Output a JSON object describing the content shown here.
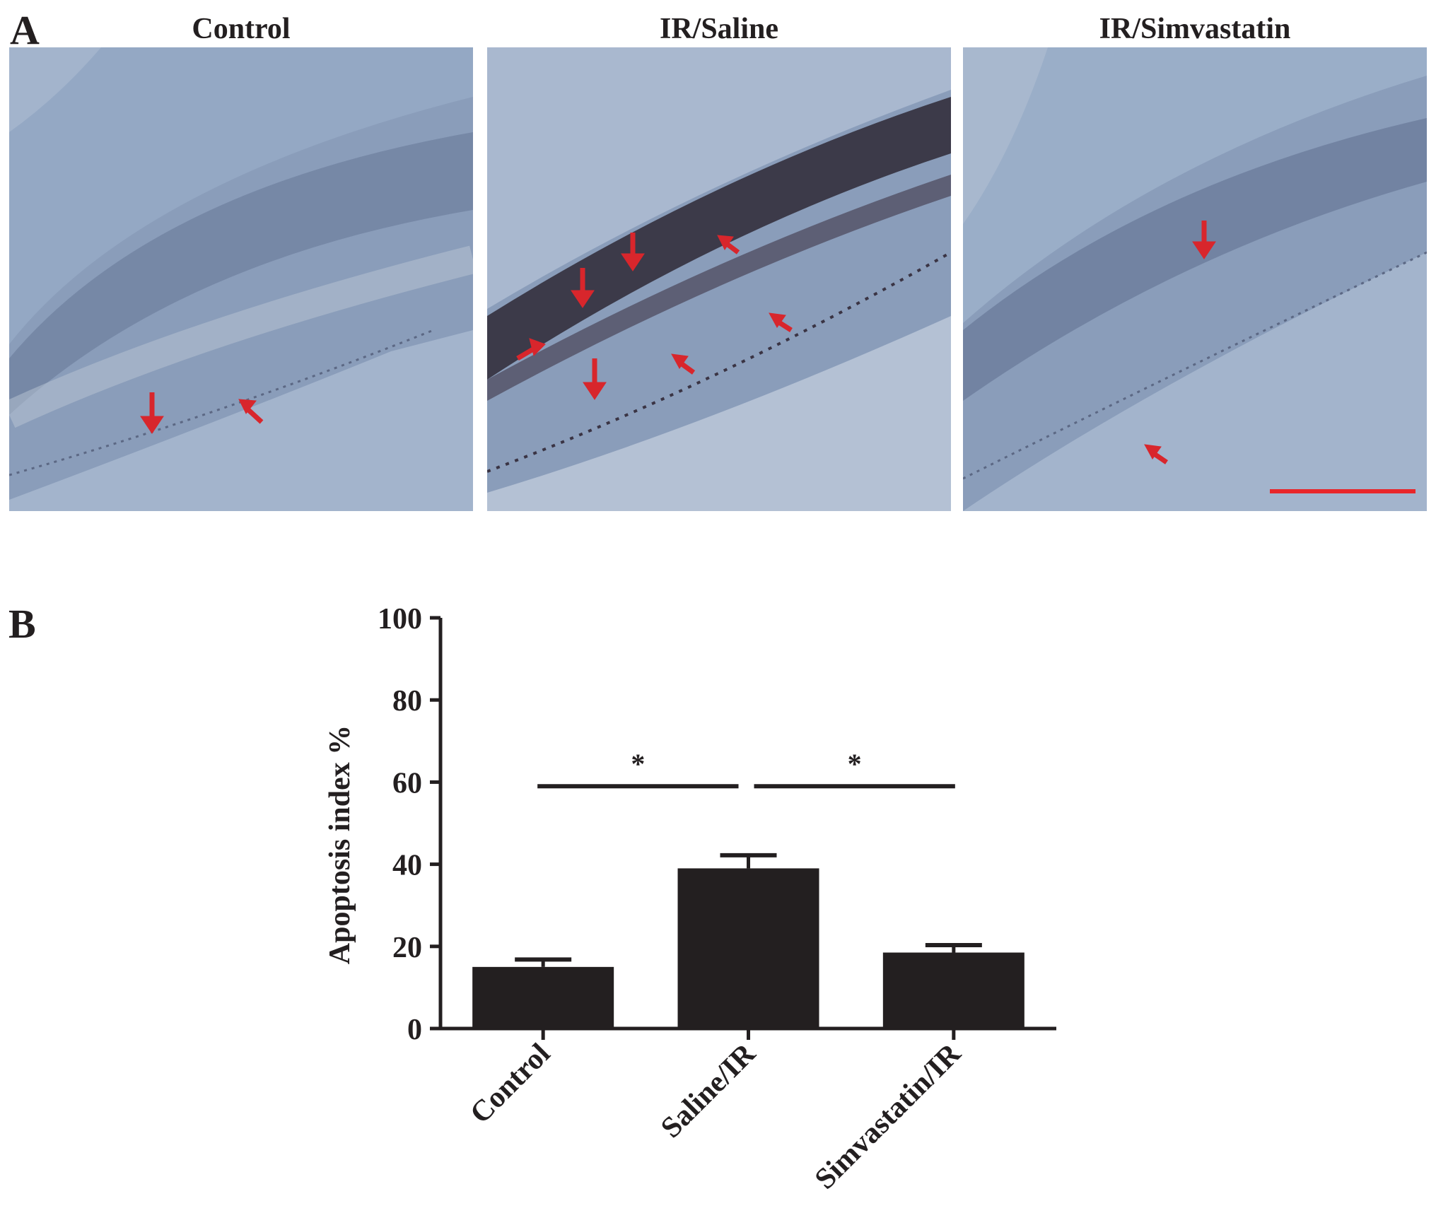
{
  "panel_a": {
    "letter": "A",
    "panels": [
      {
        "title": "Control"
      },
      {
        "title": "IR/Saline"
      },
      {
        "title": "IR/Simvastatin"
      }
    ],
    "arrow_color": "#d8262c",
    "scale_bar_color": "#e8262a",
    "tissue_color": "#8ea3c0",
    "stain_color": "#2a2430"
  },
  "panel_b": {
    "letter": "B"
  },
  "chart_data": {
    "type": "bar",
    "categories": [
      "Control",
      "Saline/IR",
      "Simvastatin/IR"
    ],
    "values": [
      15,
      39,
      18.5
    ],
    "errors": [
      1.8,
      3.2,
      1.8
    ],
    "ylabel": "Apoptosis index %",
    "xlabel": "",
    "ylim": [
      0,
      100
    ],
    "yticks": [
      0,
      20,
      40,
      60,
      80,
      100
    ],
    "significance": [
      {
        "from": "Control",
        "to": "Saline/IR",
        "label": "*"
      },
      {
        "from": "Saline/IR",
        "to": "Simvastatin/IR",
        "label": "*"
      }
    ],
    "bar_color": "#231f20",
    "grid": false
  }
}
